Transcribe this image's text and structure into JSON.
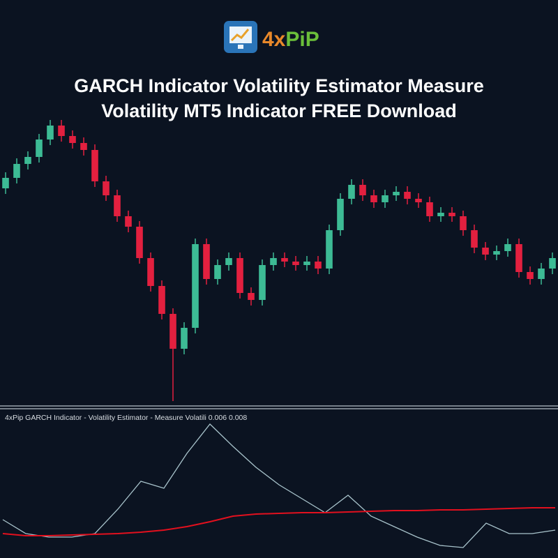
{
  "logo": {
    "prefix": "4x",
    "suffix": "PiP"
  },
  "title_lines": [
    "GARCH Indicator Volatility Estimator Measure",
    "Volatility MT5 Indicator FREE Download"
  ],
  "chart_data": [
    {
      "type": "candlestick",
      "up_color": "#3dbb95",
      "down_color": "#e3203f",
      "ylim": [
        0,
        415
      ],
      "open": [
        310,
        325,
        345,
        355,
        380,
        400,
        385,
        375,
        365,
        320,
        300,
        270,
        255,
        210,
        170,
        130,
        80,
        110,
        230,
        180,
        200,
        210,
        160,
        150,
        200,
        210,
        205,
        200,
        205,
        195,
        250,
        295,
        315,
        300,
        290,
        300,
        305,
        295,
        290,
        270,
        275,
        270,
        250,
        225,
        215,
        220,
        230,
        190,
        180,
        195
      ],
      "high": [
        333,
        353,
        363,
        388,
        408,
        408,
        393,
        383,
        373,
        328,
        308,
        278,
        263,
        218,
        178,
        138,
        118,
        238,
        238,
        208,
        218,
        218,
        168,
        208,
        218,
        218,
        213,
        213,
        213,
        258,
        303,
        323,
        323,
        308,
        308,
        313,
        313,
        303,
        298,
        283,
        283,
        278,
        258,
        233,
        228,
        238,
        238,
        198,
        203,
        218
      ],
      "low": [
        302,
        317,
        337,
        347,
        372,
        377,
        367,
        357,
        312,
        292,
        262,
        247,
        202,
        162,
        122,
        5,
        72,
        102,
        172,
        172,
        192,
        152,
        142,
        142,
        192,
        197,
        192,
        192,
        187,
        187,
        242,
        287,
        292,
        282,
        282,
        292,
        287,
        282,
        262,
        262,
        262,
        242,
        217,
        207,
        207,
        212,
        182,
        172,
        172,
        187
      ],
      "close": [
        325,
        345,
        355,
        380,
        400,
        385,
        375,
        365,
        320,
        300,
        270,
        255,
        210,
        170,
        130,
        80,
        110,
        230,
        180,
        200,
        210,
        160,
        150,
        200,
        210,
        205,
        200,
        205,
        195,
        250,
        295,
        315,
        300,
        290,
        300,
        305,
        295,
        290,
        270,
        275,
        270,
        250,
        225,
        215,
        220,
        230,
        190,
        180,
        195,
        210
      ]
    },
    {
      "type": "line",
      "title": "4xPip GARCH Indicator - Volatility Estimator - Measure Volatili 0.006 0.008",
      "ylim": [
        0,
        195
      ],
      "series": [
        {
          "color": "#a9c4cc",
          "values": [
            55,
            35,
            30,
            30,
            35,
            70,
            110,
            100,
            150,
            192,
            160,
            130,
            105,
            85,
            65,
            90,
            60,
            45,
            30,
            18,
            15,
            50,
            35,
            35,
            40
          ]
        },
        {
          "color": "#e3101e",
          "values": [
            35,
            32,
            32,
            33,
            34,
            35,
            37,
            40,
            45,
            52,
            60,
            63,
            64,
            65,
            65,
            66,
            67,
            68,
            68,
            69,
            69,
            70,
            71,
            72,
            72
          ]
        }
      ]
    }
  ]
}
